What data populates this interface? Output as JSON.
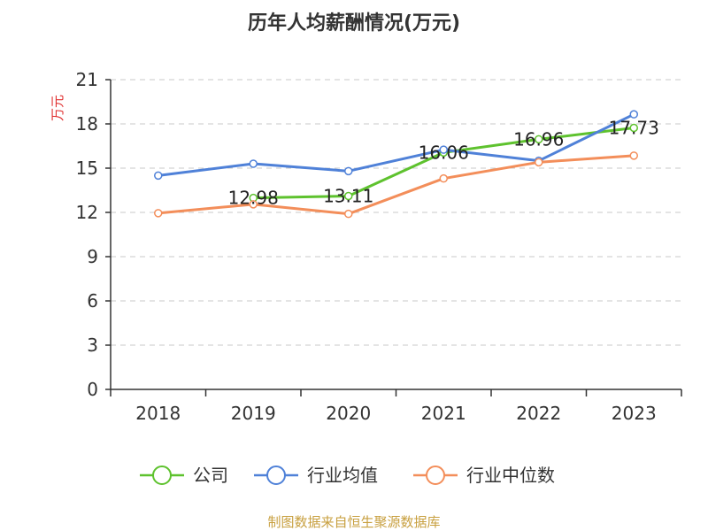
{
  "chart_data": {
    "type": "line",
    "title": "历年人均薪酬情况(万元)",
    "ylabel": "万元",
    "xlabel": "",
    "categories": [
      "2018",
      "2019",
      "2020",
      "2021",
      "2022",
      "2023"
    ],
    "ylim": [
      0,
      21
    ],
    "yticks": [
      0,
      3,
      6,
      9,
      12,
      15,
      18,
      21
    ],
    "grid": true,
    "legend_position": "bottom",
    "series": [
      {
        "name": "公司",
        "color": "#5ec22e",
        "values": [
          null,
          12.98,
          13.11,
          16.06,
          16.96,
          17.73
        ],
        "labels": [
          null,
          "12.98",
          "13.11",
          "16.06",
          "16.96",
          "17.73"
        ]
      },
      {
        "name": "行业均值",
        "color": "#4f81d8",
        "values": [
          14.5,
          15.3,
          14.8,
          16.25,
          15.5,
          18.65
        ]
      },
      {
        "name": "行业中位数",
        "color": "#f38e5a",
        "values": [
          11.95,
          12.55,
          11.9,
          14.3,
          15.4,
          15.85
        ]
      }
    ]
  },
  "source": "制图数据来自恒生聚源数据库"
}
